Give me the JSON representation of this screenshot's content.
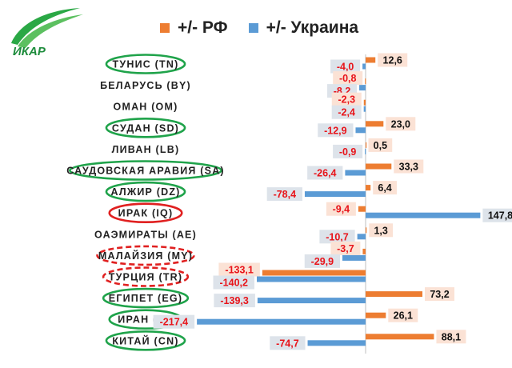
{
  "logo": {
    "text": "ИКАР"
  },
  "chart_data": {
    "type": "bar",
    "orientation": "horizontal",
    "categories": [
      "ТУНИС (TN)",
      "БЕЛАРУСЬ (BY)",
      "ОМАН (OM)",
      "СУДАН (SD)",
      "ЛИВАН (LB)",
      "САУДОВСКАЯ АРАВИЯ (SA)",
      "АЛЖИР (DZ)",
      "ИРАК (IQ)",
      "ОАЭМИРАТЫ (AE)",
      "МАЛАЙЗИЯ (MY)",
      "ТУРЦИЯ (TR)",
      "ЕГИПЕТ (EG)",
      "ИРАН (IR)",
      "КИТАЙ (CN)"
    ],
    "series": [
      {
        "name": "+/- РФ",
        "color": "#ed7d31",
        "values": [
          12.6,
          -0.8,
          -2.3,
          23.0,
          0.5,
          33.3,
          6.4,
          -9.4,
          1.3,
          -3.7,
          -133.1,
          73.2,
          26.1,
          88.1
        ],
        "labels": [
          "12,6",
          "-0,8",
          "-2,3",
          "23,0",
          "0,5",
          "33,3",
          "6,4",
          "-9,4",
          "1,3",
          "-3,7",
          "-133,1",
          "73,2",
          "26,1",
          "88,1"
        ]
      },
      {
        "name": "+/- Украина",
        "color": "#5b9bd5",
        "values": [
          -4.0,
          -8.2,
          -2.4,
          -12.9,
          -0.9,
          -26.4,
          -78.4,
          147.8,
          -10.7,
          -29.9,
          -140.2,
          -139.3,
          -217.4,
          -74.7
        ],
        "labels": [
          "-4,0",
          "-8,2",
          "-2,4",
          "-12,9",
          "-0,9",
          "-26,4",
          "-78,4",
          "147,8",
          "-10,7",
          "-29,9",
          "-140,2",
          "-139,3",
          "-217,4",
          "-74,7"
        ]
      }
    ],
    "highlights": [
      {
        "category": "ТУНИС (TN)",
        "style": "solid",
        "color": "#1fa34a"
      },
      {
        "category": "СУДАН (SD)",
        "style": "solid",
        "color": "#1fa34a"
      },
      {
        "category": "САУДОВСКАЯ АРАВИЯ (SA)",
        "style": "solid",
        "color": "#1fa34a"
      },
      {
        "category": "АЛЖИР (DZ)",
        "style": "solid",
        "color": "#1fa34a"
      },
      {
        "category": "ИРАК (IQ)",
        "style": "solid",
        "color": "#e02020"
      },
      {
        "category": "МАЛАЙЗИЯ (MY)",
        "style": "dashed",
        "color": "#e02020"
      },
      {
        "category": "ТУРЦИЯ (TR)",
        "style": "dashed",
        "color": "#e02020"
      },
      {
        "category": "ЕГИПЕТ (EG)",
        "style": "solid",
        "color": "#1fa34a"
      },
      {
        "category": "ИРАН (IR)",
        "style": "solid",
        "color": "#1fa34a"
      },
      {
        "category": "КИТАЙ (CN)",
        "style": "solid",
        "color": "#1fa34a"
      }
    ],
    "xlim": [
      -230,
      160
    ],
    "grid": false,
    "legend_position": "top",
    "label_colors": {
      "negative": "#e8141a",
      "positive": "#111111",
      "rf_box": "#fbe2d5",
      "ua_box": "#dde3ea"
    }
  }
}
